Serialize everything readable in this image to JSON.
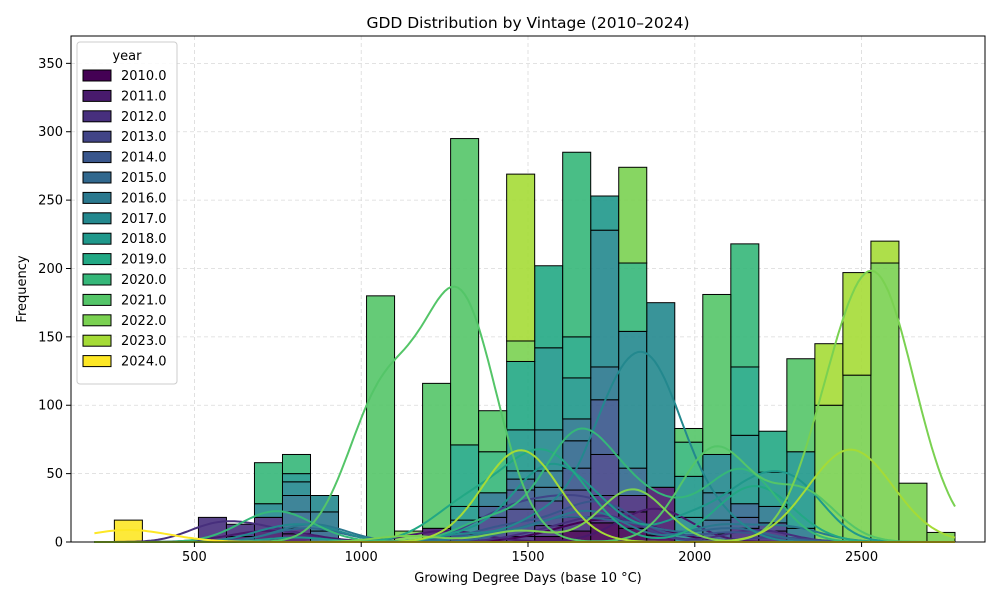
{
  "chart_data": {
    "type": "bar",
    "subtype": "stacked-histogram-with-kde",
    "title": "GDD Distribution by Vintage (2010–2024)",
    "xlabel": "Growing Degree Days (base 10 °C)",
    "ylabel": "Frequency",
    "xlim": [
      130,
      2870
    ],
    "ylim": [
      0,
      370
    ],
    "x_ticks": [
      500,
      1000,
      1500,
      2000,
      2500
    ],
    "y_ticks": [
      0,
      50,
      100,
      150,
      200,
      250,
      300,
      350
    ],
    "bin_width": 84,
    "grid": true,
    "legend": {
      "title": "year",
      "position": "top-left"
    },
    "palette": {
      "2010.0": "#440154",
      "2011.0": "#481a6c",
      "2012.0": "#472f7d",
      "2013.0": "#414487",
      "2014.0": "#39568c",
      "2015.0": "#31688e",
      "2016.0": "#2a788e",
      "2017.0": "#23888e",
      "2018.0": "#1f988b",
      "2019.0": "#22a884",
      "2020.0": "#35b779",
      "2021.0": "#54c568",
      "2022.0": "#7ad151",
      "2023.0": "#a5db36",
      "2024.0": "#fde725"
    },
    "series": [
      {
        "name": "2010.0",
        "bins": [
          [
            1562,
            4
          ],
          [
            1646,
            8
          ],
          [
            1730,
            14
          ],
          [
            1814,
            10
          ],
          [
            1898,
            5
          ]
        ]
      },
      {
        "name": "2011.0",
        "bins": [
          [
            638,
            4
          ],
          [
            722,
            8
          ],
          [
            806,
            6
          ],
          [
            1226,
            10
          ],
          [
            1310,
            6
          ],
          [
            1814,
            12
          ],
          [
            1898,
            35
          ]
        ]
      },
      {
        "name": "2012.0",
        "bins": [
          [
            554,
            18
          ],
          [
            638,
            9
          ],
          [
            722,
            10
          ],
          [
            806,
            4
          ],
          [
            1478,
            4
          ],
          [
            1562,
            8
          ],
          [
            1646,
            10
          ],
          [
            1730,
            20
          ],
          [
            1814,
            12
          ],
          [
            2150,
            10
          ],
          [
            2234,
            8
          ]
        ]
      },
      {
        "name": "2013.0",
        "bins": [
          [
            1394,
            18
          ],
          [
            1478,
            20
          ],
          [
            1562,
            18
          ],
          [
            1646,
            20
          ],
          [
            1730,
            30
          ],
          [
            2234,
            6
          ]
        ]
      },
      {
        "name": "2014.0",
        "bins": [
          [
            1394,
            8
          ],
          [
            1478,
            14
          ],
          [
            1646,
            16
          ],
          [
            1730,
            40
          ],
          [
            2066,
            6
          ],
          [
            2150,
            8
          ]
        ]
      },
      {
        "name": "2015.0",
        "bins": [
          [
            806,
            12
          ],
          [
            890,
            8
          ],
          [
            1478,
            8
          ],
          [
            1562,
            10
          ],
          [
            1646,
            20
          ],
          [
            1814,
            20
          ],
          [
            2066,
            10
          ],
          [
            2150,
            10
          ]
        ]
      },
      {
        "name": "2016.0",
        "bins": [
          [
            806,
            12
          ],
          [
            890,
            14
          ],
          [
            1394,
            10
          ],
          [
            1562,
            12
          ],
          [
            1646,
            16
          ],
          [
            1730,
            24
          ],
          [
            2066,
            20
          ],
          [
            2234,
            12
          ],
          [
            2318,
            10
          ]
        ]
      },
      {
        "name": "2017.0",
        "bins": [
          [
            722,
            10
          ],
          [
            806,
            10
          ],
          [
            890,
            12
          ],
          [
            1310,
            10
          ],
          [
            1478,
            6
          ],
          [
            1562,
            30
          ],
          [
            1730,
            100
          ],
          [
            1814,
            100
          ],
          [
            1898,
            135
          ],
          [
            1982,
            18
          ],
          [
            2066,
            28
          ]
        ]
      },
      {
        "name": "2018.0",
        "bins": [
          [
            806,
            6
          ],
          [
            1310,
            10
          ],
          [
            1478,
            30
          ],
          [
            1562,
            60
          ],
          [
            1646,
            30
          ],
          [
            1730,
            25
          ],
          [
            1982,
            30
          ],
          [
            2150,
            50
          ],
          [
            2234,
            25
          ],
          [
            2318,
            56
          ]
        ]
      },
      {
        "name": "2019.0",
        "bins": [
          [
            1310,
            45
          ],
          [
            1478,
            50
          ],
          [
            1562,
            60
          ],
          [
            1646,
            30
          ],
          [
            2150,
            50
          ],
          [
            2234,
            30
          ]
        ]
      },
      {
        "name": "2020.0",
        "bins": [
          [
            722,
            30
          ],
          [
            806,
            14
          ],
          [
            1394,
            30
          ],
          [
            1646,
            135
          ],
          [
            1814,
            50
          ],
          [
            1982,
            25
          ],
          [
            2150,
            90
          ]
        ]
      },
      {
        "name": "2021.0",
        "bins": [
          [
            1058,
            180
          ],
          [
            1226,
            106
          ],
          [
            1310,
            224
          ],
          [
            1394,
            30
          ],
          [
            1982,
            10
          ],
          [
            2066,
            117
          ],
          [
            2318,
            68
          ]
        ]
      },
      {
        "name": "2022.0",
        "bins": [
          [
            1142,
            8
          ],
          [
            1478,
            15
          ],
          [
            1814,
            70
          ],
          [
            2402,
            100
          ],
          [
            2486,
            122
          ],
          [
            2570,
            204
          ],
          [
            2654,
            43
          ],
          [
            2738,
            7
          ]
        ]
      },
      {
        "name": "2023.0",
        "bins": [
          [
            1478,
            122
          ],
          [
            2402,
            45
          ],
          [
            2486,
            75
          ],
          [
            2570,
            16
          ]
        ]
      },
      {
        "name": "2024.0",
        "bins": [
          [
            302,
            16
          ]
        ]
      }
    ]
  }
}
